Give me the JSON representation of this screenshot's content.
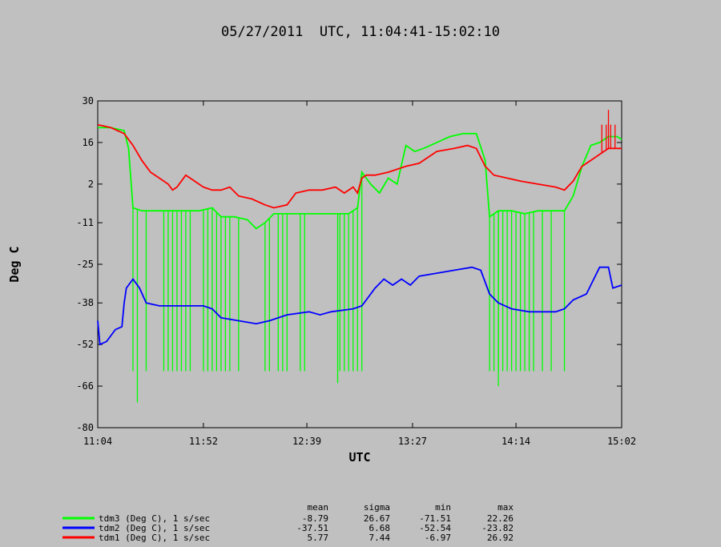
{
  "chart_data": {
    "type": "line",
    "title": "05/27/2011  UTC, 11:04:41-15:02:10",
    "xlabel": "UTC",
    "ylabel": "Deg C",
    "x_range_minutes": [
      664,
      902
    ],
    "x_ticks": [
      {
        "label": "11:04",
        "min": 664
      },
      {
        "label": "11:52",
        "min": 712
      },
      {
        "label": "12:39",
        "min": 759
      },
      {
        "label": "13:27",
        "min": 807
      },
      {
        "label": "14:14",
        "min": 854
      },
      {
        "label": "15:02",
        "min": 902
      }
    ],
    "ylim": [
      -80,
      30
    ],
    "y_ticks": [
      30,
      16,
      2,
      -11,
      -25,
      -38,
      -52,
      -66,
      -80
    ],
    "stats_headers": [
      "mean",
      "sigma",
      "min",
      "max"
    ],
    "series": [
      {
        "name": "tdm3 (Deg C), 1 s/sec",
        "color": "#00ff00",
        "stats": {
          "mean": "-8.79",
          "sigma": "26.67",
          "min": "-71.51",
          "max": "22.26"
        },
        "points": [
          [
            664,
            21
          ],
          [
            670,
            21
          ],
          [
            676,
            20
          ],
          [
            678,
            14
          ],
          [
            680,
            -6
          ],
          [
            684,
            -7
          ],
          [
            690,
            -7
          ],
          [
            700,
            -7
          ],
          [
            710,
            -7
          ],
          [
            716,
            -6
          ],
          [
            720,
            -9
          ],
          [
            726,
            -9
          ],
          [
            732,
            -10
          ],
          [
            736,
            -13
          ],
          [
            740,
            -11
          ],
          [
            744,
            -8
          ],
          [
            750,
            -8
          ],
          [
            760,
            -8
          ],
          [
            770,
            -8
          ],
          [
            778,
            -8
          ],
          [
            782,
            -6
          ],
          [
            784,
            6
          ],
          [
            788,
            2
          ],
          [
            792,
            -1
          ],
          [
            796,
            4
          ],
          [
            800,
            2
          ],
          [
            804,
            15
          ],
          [
            808,
            13
          ],
          [
            812,
            14
          ],
          [
            818,
            16
          ],
          [
            824,
            18
          ],
          [
            830,
            19
          ],
          [
            836,
            19
          ],
          [
            840,
            10
          ],
          [
            842,
            -9
          ],
          [
            846,
            -7
          ],
          [
            852,
            -7
          ],
          [
            858,
            -8
          ],
          [
            864,
            -7
          ],
          [
            870,
            -7
          ],
          [
            876,
            -7
          ],
          [
            880,
            -2
          ],
          [
            884,
            8
          ],
          [
            888,
            15
          ],
          [
            892,
            16
          ],
          [
            896,
            18
          ],
          [
            900,
            18
          ],
          [
            902,
            17
          ]
        ],
        "spikes_to": -61,
        "spike_minutes": [
          680,
          686,
          694,
          696,
          698,
          700,
          702,
          704,
          706,
          712,
          714,
          716,
          718,
          720,
          722,
          724,
          728,
          740,
          742,
          746,
          748,
          750,
          756,
          758,
          774,
          776,
          778,
          780,
          782,
          784,
          842,
          844,
          846,
          848,
          850,
          852,
          854,
          856,
          858,
          860,
          862,
          866,
          870,
          876
        ],
        "spike_deep": [
          [
            682,
            -71.5
          ],
          [
            773,
            -65
          ],
          [
            846,
            -66
          ]
        ]
      },
      {
        "name": "tdm2 (Deg C), 1 s/sec",
        "color": "#0000ff",
        "stats": {
          "mean": "-37.51",
          "sigma": "6.68",
          "min": "-52.54",
          "max": "-23.82"
        },
        "points": [
          [
            664,
            -44
          ],
          [
            665,
            -52
          ],
          [
            668,
            -51
          ],
          [
            672,
            -47
          ],
          [
            675,
            -46
          ],
          [
            676,
            -38
          ],
          [
            677,
            -33
          ],
          [
            680,
            -30
          ],
          [
            683,
            -33
          ],
          [
            686,
            -38
          ],
          [
            692,
            -39
          ],
          [
            700,
            -39
          ],
          [
            712,
            -39
          ],
          [
            716,
            -40
          ],
          [
            720,
            -43
          ],
          [
            728,
            -44
          ],
          [
            736,
            -45
          ],
          [
            742,
            -44
          ],
          [
            750,
            -42
          ],
          [
            760,
            -41
          ],
          [
            765,
            -42
          ],
          [
            770,
            -41
          ],
          [
            780,
            -40
          ],
          [
            784,
            -39
          ],
          [
            790,
            -33
          ],
          [
            794,
            -30
          ],
          [
            798,
            -32
          ],
          [
            802,
            -30
          ],
          [
            806,
            -32
          ],
          [
            810,
            -29
          ],
          [
            818,
            -28
          ],
          [
            826,
            -27
          ],
          [
            834,
            -26
          ],
          [
            838,
            -27
          ],
          [
            842,
            -35
          ],
          [
            846,
            -38
          ],
          [
            852,
            -40
          ],
          [
            860,
            -41
          ],
          [
            872,
            -41
          ],
          [
            876,
            -40
          ],
          [
            880,
            -37
          ],
          [
            886,
            -35
          ],
          [
            892,
            -26
          ],
          [
            896,
            -26
          ],
          [
            898,
            -33
          ],
          [
            902,
            -32
          ]
        ]
      },
      {
        "name": "tdm1 (Deg C), 1 s/sec",
        "color": "#ff0000",
        "stats": {
          "mean": "5.77",
          "sigma": "7.44",
          "min": "-6.97",
          "max": "26.92"
        },
        "points": [
          [
            664,
            22
          ],
          [
            670,
            21
          ],
          [
            676,
            19
          ],
          [
            680,
            15
          ],
          [
            684,
            10
          ],
          [
            688,
            6
          ],
          [
            692,
            4
          ],
          [
            696,
            2
          ],
          [
            698,
            0
          ],
          [
            700,
            1
          ],
          [
            704,
            5
          ],
          [
            708,
            3
          ],
          [
            712,
            1
          ],
          [
            716,
            0
          ],
          [
            720,
            0
          ],
          [
            724,
            1
          ],
          [
            728,
            -2
          ],
          [
            734,
            -3
          ],
          [
            740,
            -5
          ],
          [
            744,
            -6
          ],
          [
            750,
            -5
          ],
          [
            754,
            -1
          ],
          [
            760,
            0
          ],
          [
            766,
            0
          ],
          [
            772,
            1
          ],
          [
            776,
            -1
          ],
          [
            780,
            1
          ],
          [
            782,
            -1
          ],
          [
            784,
            4
          ],
          [
            786,
            5
          ],
          [
            790,
            5
          ],
          [
            796,
            6
          ],
          [
            804,
            8
          ],
          [
            810,
            9
          ],
          [
            818,
            13
          ],
          [
            826,
            14
          ],
          [
            832,
            15
          ],
          [
            836,
            14
          ],
          [
            840,
            8
          ],
          [
            844,
            5
          ],
          [
            850,
            4
          ],
          [
            856,
            3
          ],
          [
            864,
            2
          ],
          [
            872,
            1
          ],
          [
            876,
            0
          ],
          [
            880,
            3
          ],
          [
            884,
            8
          ],
          [
            888,
            10
          ],
          [
            892,
            12
          ],
          [
            896,
            14
          ],
          [
            900,
            14
          ],
          [
            902,
            14
          ]
        ],
        "spikes_to": 22,
        "spike_minutes": [
          893,
          895,
          897,
          899
        ],
        "spike_deep": [
          [
            896,
            27
          ]
        ]
      }
    ]
  }
}
